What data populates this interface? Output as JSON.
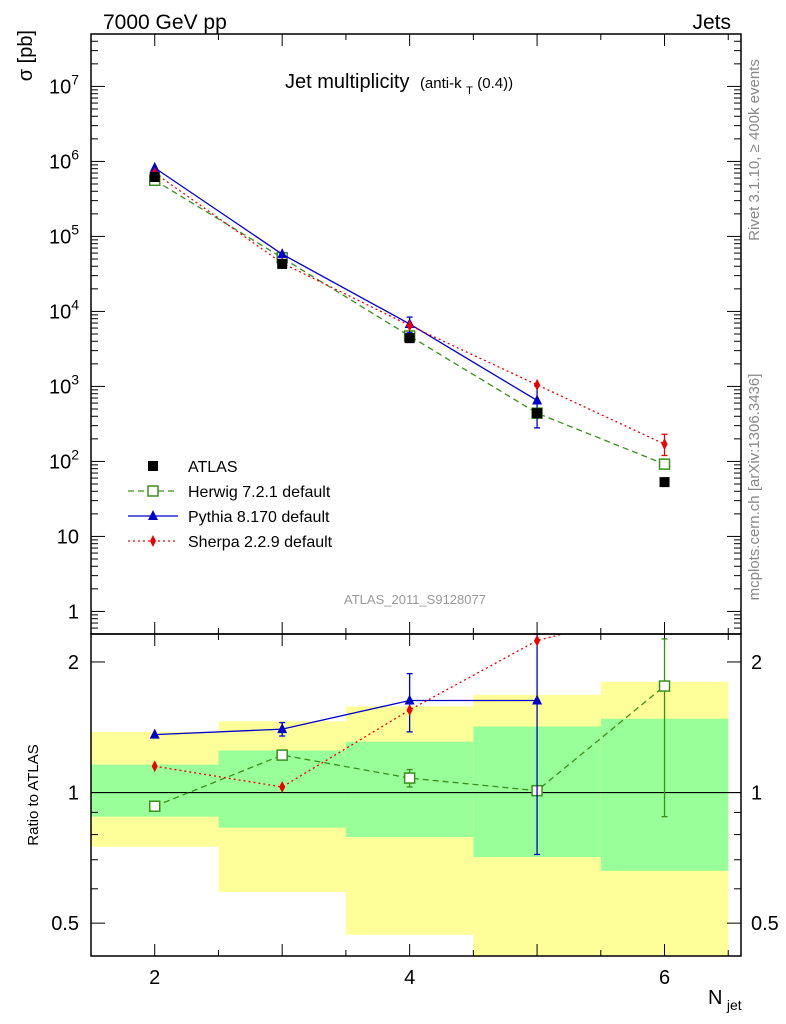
{
  "header": {
    "left": "7000 GeV pp",
    "right": "Jets"
  },
  "title": {
    "main": "Jet multiplicity",
    "detail_pre": "(anti-k",
    "detail_sub": "T",
    "detail_post": "(0.4))"
  },
  "side_labels": {
    "top": "Rivet 3.1.10, ≥ 400k events",
    "bottom": "mcplots.cern.ch [arXiv:1306.3436]"
  },
  "analysis_id": "ATLAS_2011_S9128077",
  "colors": {
    "atlas": "#000000",
    "herwig": "#3a8f1b",
    "pythia": "#0000cc",
    "sherpa": "#ee0000",
    "band_outer": "#ffff99",
    "band_inner": "#99ff99"
  },
  "chart_data": [
    {
      "type": "line",
      "panel": "main",
      "ylabel": "σ [pb]",
      "yscale": "log",
      "ylim": [
        0.5,
        50000000
      ],
      "xlim": [
        1.5,
        6.6
      ],
      "yticks": [
        {
          "v": 1,
          "label": "1"
        },
        {
          "v": 10,
          "label": "10"
        },
        {
          "v": 100,
          "label": "10^2"
        },
        {
          "v": 1000,
          "label": "10^3"
        },
        {
          "v": 10000,
          "label": "10^4"
        },
        {
          "v": 100000,
          "label": "10^5"
        },
        {
          "v": 1000000,
          "label": "10^6"
        },
        {
          "v": 10000000,
          "label": "10^7"
        }
      ],
      "legend": {
        "position": "bottom-left",
        "entries": [
          "ATLAS",
          "Herwig 7.2.1 default",
          "Pythia 8.170 default",
          "Sherpa 2.2.9 default"
        ]
      },
      "series": [
        {
          "name": "ATLAS",
          "key": "atlas",
          "marker": "square-filled",
          "line": "none",
          "x": [
            2,
            3,
            4,
            5,
            6
          ],
          "y": [
            620000,
            43000,
            4400,
            440,
            53
          ],
          "err": [
            [
              0,
              0
            ],
            [
              0,
              0
            ],
            [
              0,
              0
            ],
            [
              0,
              0
            ],
            [
              0,
              0
            ]
          ]
        },
        {
          "name": "Herwig 7.2.1 default",
          "key": "herwig",
          "marker": "square-open",
          "line": "dashed",
          "x": [
            2,
            3,
            4,
            5,
            6
          ],
          "y": [
            560000,
            52000,
            4700,
            440,
            92
          ],
          "err": [
            [
              0,
              0
            ],
            [
              0,
              0
            ],
            [
              0,
              0
            ],
            [
              0,
              0
            ],
            [
              0,
              0
            ]
          ]
        },
        {
          "name": "Pythia 8.170 default",
          "key": "pythia",
          "marker": "triangle",
          "line": "solid",
          "x": [
            2,
            3,
            4,
            5,
            6
          ],
          "y": [
            820000,
            58000,
            6800,
            650,
            0
          ],
          "err": [
            [
              0,
              0
            ],
            [
              0,
              0
            ],
            [
              1600,
              1600
            ],
            [
              370,
              370
            ],
            [
              0,
              0
            ]
          ]
        },
        {
          "name": "Sherpa 2.2.9 default",
          "key": "sherpa",
          "marker": "diamond",
          "line": "dotted",
          "x": [
            2,
            3,
            4,
            5,
            6
          ],
          "y": [
            700000,
            44000,
            6500,
            1050,
            170
          ],
          "err": [
            [
              0,
              0
            ],
            [
              0,
              0
            ],
            [
              0,
              0
            ],
            [
              0,
              0
            ],
            [
              50,
              60
            ]
          ]
        }
      ]
    },
    {
      "type": "line",
      "panel": "ratio",
      "xlabel": "N",
      "xlabel_sub": "jet",
      "ylabel": "Ratio to ATLAS",
      "yscale": "log",
      "ylim": [
        0.42,
        2.32
      ],
      "xlim": [
        1.5,
        6.6
      ],
      "xticks": [
        2,
        4,
        6
      ],
      "yticks": [
        {
          "v": 0.5,
          "label": "0.5"
        },
        {
          "v": 1,
          "label": "1"
        },
        {
          "v": 2,
          "label": "2"
        }
      ],
      "bands": {
        "edges": [
          1.5,
          2.5,
          3.5,
          4.5,
          5.5,
          6.5
        ],
        "outer": [
          [
            0.75,
            1.38
          ],
          [
            0.59,
            1.46
          ],
          [
            0.47,
            1.58
          ],
          [
            0.33,
            1.68
          ],
          [
            0.33,
            1.8
          ]
        ],
        "inner": [
          [
            0.88,
            1.16
          ],
          [
            0.83,
            1.25
          ],
          [
            0.79,
            1.31
          ],
          [
            0.71,
            1.42
          ],
          [
            0.66,
            1.48
          ]
        ]
      },
      "series": [
        {
          "name": "Herwig 7.2.1 default",
          "key": "herwig",
          "marker": "square-open",
          "line": "dashed",
          "x": [
            2,
            3,
            4,
            5,
            6
          ],
          "y": [
            0.93,
            1.22,
            1.08,
            1.01,
            1.76
          ],
          "err": [
            [
              0,
              0
            ],
            [
              0,
              0
            ],
            [
              0.05,
              0.05
            ],
            [
              0,
              0
            ],
            [
              0.88,
              0.5
            ]
          ]
        },
        {
          "name": "Pythia 8.170 default",
          "key": "pythia",
          "marker": "triangle",
          "line": "solid",
          "x": [
            2,
            3,
            4,
            5
          ],
          "y": [
            1.36,
            1.4,
            1.63,
            1.63
          ],
          "err": [
            [
              0,
              0
            ],
            [
              0.05,
              0.05
            ],
            [
              0.25,
              0.25
            ],
            [
              0.91,
              0.91
            ]
          ]
        },
        {
          "name": "Sherpa 2.2.9 default",
          "key": "sherpa",
          "marker": "diamond",
          "line": "dotted",
          "x": [
            2,
            3,
            4,
            5,
            5.2
          ],
          "y": [
            1.15,
            1.03,
            1.55,
            2.24,
            2.32
          ],
          "err": [
            [
              0,
              0
            ],
            [
              0,
              0
            ],
            [
              0,
              0
            ],
            [
              0,
              0
            ],
            [
              0,
              0
            ]
          ]
        }
      ]
    }
  ]
}
